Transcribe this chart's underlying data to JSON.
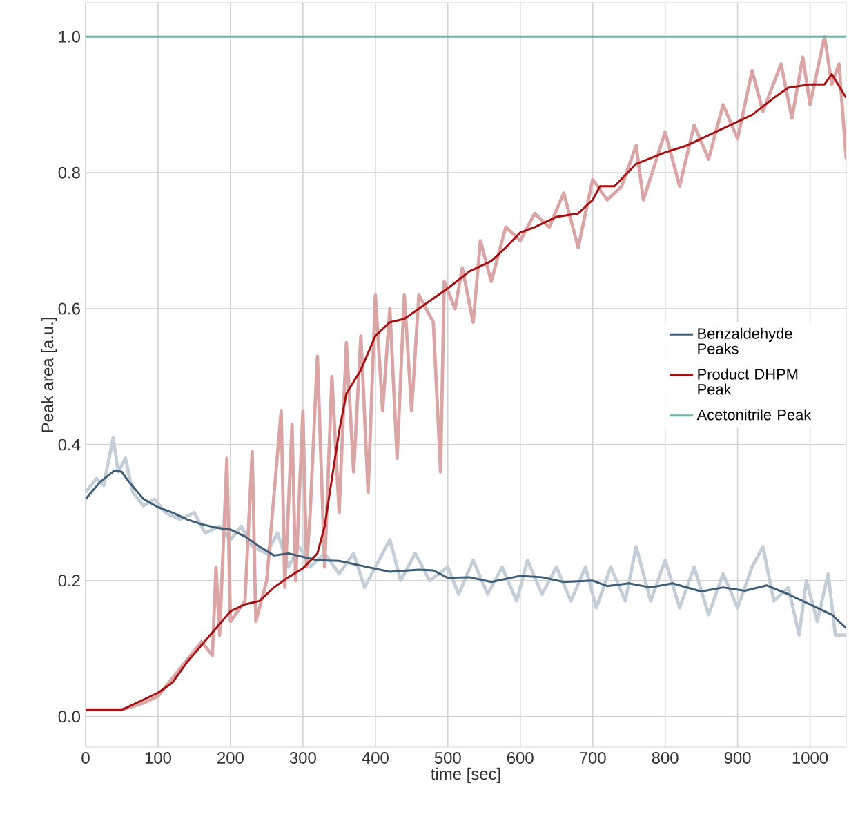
{
  "chart_data": {
    "type": "line",
    "xlabel": "time [sec]",
    "ylabel": "Peak area [a.u.]",
    "xlim": [
      0,
      1050
    ],
    "xticks": [
      0,
      100,
      200,
      300,
      400,
      500,
      600,
      700,
      800,
      900,
      1000
    ],
    "ylim": [
      -0.045,
      1.05
    ],
    "yticks": [
      {
        "value": 0,
        "label": "0.0"
      },
      {
        "value": 0.2,
        "label": "0.2"
      },
      {
        "value": 0.4,
        "label": "0.4"
      },
      {
        "value": 0.6,
        "label": "0.6"
      },
      {
        "value": 0.8,
        "label": "0.8"
      },
      {
        "value": 1,
        "label": "1.0"
      }
    ],
    "grid": true,
    "legend": "right",
    "marker": "none",
    "line_style": "solid",
    "series": [
      {
        "color": "#c3ced8",
        "x": [
          0,
          15,
          25,
          38,
          45,
          55,
          65,
          80,
          95,
          110,
          130,
          150,
          165,
          185,
          200,
          215,
          230,
          250,
          265,
          280,
          295,
          310,
          330,
          350,
          370,
          385,
          400,
          420,
          435,
          455,
          475,
          500,
          515,
          535,
          555,
          575,
          595,
          610,
          630,
          650,
          670,
          690,
          705,
          725,
          745,
          760,
          780,
          800,
          820,
          840,
          860,
          880,
          900,
          920,
          935,
          950,
          970,
          985,
          995,
          1010,
          1025,
          1035,
          1050
        ],
        "values": [
          0.33,
          0.35,
          0.34,
          0.41,
          0.36,
          0.38,
          0.33,
          0.31,
          0.32,
          0.3,
          0.29,
          0.3,
          0.27,
          0.28,
          0.26,
          0.28,
          0.25,
          0.24,
          0.27,
          0.22,
          0.25,
          0.22,
          0.24,
          0.21,
          0.24,
          0.19,
          0.22,
          0.26,
          0.2,
          0.24,
          0.2,
          0.22,
          0.18,
          0.23,
          0.18,
          0.22,
          0.17,
          0.23,
          0.18,
          0.22,
          0.17,
          0.22,
          0.16,
          0.22,
          0.17,
          0.25,
          0.17,
          0.23,
          0.16,
          0.22,
          0.15,
          0.21,
          0.16,
          0.22,
          0.25,
          0.17,
          0.19,
          0.12,
          0.2,
          0.14,
          0.21,
          0.12,
          0.12
        ]
      },
      {
        "color": "#dba5a5",
        "x": [
          0,
          50,
          80,
          100,
          130,
          160,
          175,
          180,
          185,
          195,
          200,
          220,
          230,
          235,
          250,
          270,
          275,
          285,
          290,
          300,
          305,
          310,
          320,
          330,
          340,
          350,
          360,
          370,
          380,
          390,
          400,
          410,
          420,
          430,
          440,
          450,
          460,
          480,
          490,
          495,
          510,
          520,
          535,
          545,
          560,
          580,
          600,
          620,
          640,
          660,
          680,
          700,
          720,
          740,
          760,
          770,
          800,
          820,
          840,
          860,
          880,
          900,
          920,
          935,
          960,
          975,
          990,
          1000,
          1020,
          1030,
          1040,
          1050
        ],
        "values": [
          0.01,
          0.01,
          0.02,
          0.03,
          0.07,
          0.11,
          0.09,
          0.22,
          0.12,
          0.38,
          0.14,
          0.17,
          0.39,
          0.14,
          0.2,
          0.45,
          0.19,
          0.43,
          0.2,
          0.45,
          0.22,
          0.3,
          0.53,
          0.22,
          0.5,
          0.3,
          0.55,
          0.36,
          0.56,
          0.33,
          0.62,
          0.45,
          0.6,
          0.38,
          0.62,
          0.45,
          0.62,
          0.58,
          0.36,
          0.64,
          0.6,
          0.66,
          0.58,
          0.7,
          0.64,
          0.72,
          0.7,
          0.74,
          0.72,
          0.77,
          0.69,
          0.79,
          0.76,
          0.78,
          0.84,
          0.76,
          0.86,
          0.78,
          0.87,
          0.82,
          0.9,
          0.85,
          0.95,
          0.89,
          0.96,
          0.88,
          0.97,
          0.9,
          1.0,
          0.93,
          0.96,
          0.82
        ]
      },
      {
        "name": "Benzaldehyde Peaks",
        "color": "#3e5c76",
        "x": [
          0,
          20,
          40,
          50,
          60,
          80,
          100,
          120,
          140,
          160,
          180,
          200,
          220,
          240,
          260,
          280,
          300,
          320,
          350,
          380,
          420,
          460,
          480,
          500,
          530,
          560,
          600,
          630,
          660,
          700,
          720,
          750,
          780,
          810,
          850,
          880,
          910,
          940,
          970,
          1000,
          1030,
          1050
        ],
        "values": [
          0.32,
          0.345,
          0.362,
          0.36,
          0.345,
          0.32,
          0.308,
          0.3,
          0.29,
          0.283,
          0.278,
          0.275,
          0.265,
          0.25,
          0.237,
          0.24,
          0.235,
          0.23,
          0.229,
          0.222,
          0.213,
          0.216,
          0.215,
          0.204,
          0.205,
          0.198,
          0.207,
          0.205,
          0.198,
          0.2,
          0.192,
          0.196,
          0.19,
          0.196,
          0.184,
          0.19,
          0.185,
          0.193,
          0.18,
          0.165,
          0.15,
          0.13
        ]
      },
      {
        "name": "Product DHPM Peak",
        "color": "#a50f0f",
        "x": [
          0,
          30,
          50,
          70,
          100,
          120,
          140,
          160,
          180,
          200,
          220,
          240,
          260,
          280,
          300,
          320,
          330,
          340,
          350,
          360,
          380,
          400,
          420,
          440,
          460,
          480,
          500,
          530,
          560,
          580,
          600,
          620,
          650,
          680,
          700,
          710,
          730,
          760,
          800,
          830,
          860,
          890,
          920,
          950,
          970,
          1000,
          1020,
          1030,
          1050
        ],
        "values": [
          0.01,
          0.01,
          0.01,
          0.02,
          0.035,
          0.05,
          0.08,
          0.105,
          0.13,
          0.155,
          0.165,
          0.17,
          0.19,
          0.205,
          0.218,
          0.24,
          0.28,
          0.35,
          0.42,
          0.475,
          0.51,
          0.56,
          0.58,
          0.585,
          0.6,
          0.615,
          0.63,
          0.655,
          0.67,
          0.69,
          0.712,
          0.72,
          0.735,
          0.74,
          0.76,
          0.78,
          0.78,
          0.813,
          0.83,
          0.84,
          0.855,
          0.87,
          0.885,
          0.91,
          0.925,
          0.93,
          0.93,
          0.945,
          0.91
        ]
      },
      {
        "name": "Acetonitrile Peak",
        "color": "#6fb2a8",
        "x": [
          0,
          1050
        ],
        "values": [
          1,
          1
        ]
      }
    ]
  }
}
